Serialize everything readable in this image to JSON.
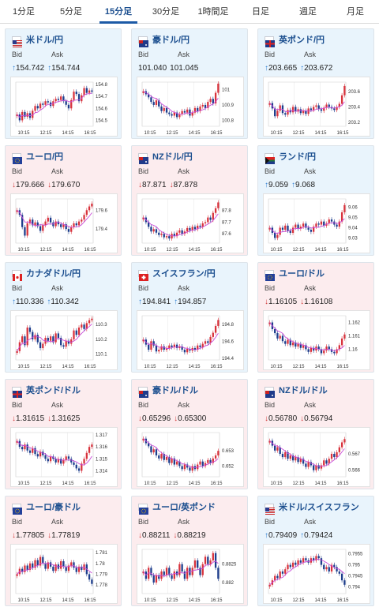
{
  "tabs": [
    {
      "label": "1分足",
      "active": false
    },
    {
      "label": "5分足",
      "active": false
    },
    {
      "label": "15分足",
      "active": true
    },
    {
      "label": "30分足",
      "active": false
    },
    {
      "label": "1時間足",
      "active": false
    },
    {
      "label": "日足",
      "active": false
    },
    {
      "label": "週足",
      "active": false
    },
    {
      "label": "月足",
      "active": false
    }
  ],
  "labels": {
    "bid": "Bid",
    "ask": "Ask"
  },
  "time_ticks": [
    "10:15",
    "12:15",
    "14:15",
    "16:15"
  ],
  "colors": {
    "up": "#2f7fd2",
    "down": "#d23b3b",
    "ma": "#c94bd8",
    "candle_up": "#d8323c",
    "candle_down": "#1d3d8c"
  },
  "pairs": [
    {
      "name": "米ドル/円",
      "flag": "us-flag",
      "trend": "up",
      "bid": "154.742",
      "ask": "154.744",
      "bid_dir": "up",
      "ask_dir": "up",
      "yticks": [
        "154.8",
        "154.7",
        "154.6",
        "154.5"
      ],
      "range": [
        154.45,
        154.82
      ],
      "series": [
        154.55,
        154.5,
        154.57,
        154.53,
        154.56,
        154.52,
        154.58,
        154.62,
        154.6,
        154.64,
        154.63,
        154.66,
        154.65,
        154.62,
        154.66,
        154.68,
        154.67,
        154.7,
        154.66,
        154.63,
        154.6,
        154.67,
        154.74,
        154.72,
        154.66,
        154.71,
        154.77,
        154.73,
        154.75,
        154.74
      ]
    },
    {
      "name": "豪ドル/円",
      "flag": "au-flag",
      "trend": "up",
      "bid": "101.040",
      "ask": "101.045",
      "bid_dir": "none",
      "ask_dir": "none",
      "yticks": [
        "101",
        "100.9",
        "100.8"
      ],
      "range": [
        100.76,
        101.05
      ],
      "series": [
        100.99,
        100.97,
        100.95,
        100.92,
        100.9,
        100.93,
        100.89,
        100.86,
        100.88,
        100.85,
        100.84,
        100.83,
        100.85,
        100.82,
        100.84,
        100.86,
        100.85,
        100.87,
        100.83,
        100.85,
        100.88,
        100.86,
        100.89,
        100.9,
        100.88,
        100.92,
        100.94,
        100.91,
        100.98,
        101.04
      ]
    },
    {
      "name": "英ポンド/円",
      "flag": "gb-flag",
      "trend": "up",
      "bid": "203.665",
      "ask": "203.672",
      "bid_dir": "up",
      "ask_dir": "up",
      "yticks": [
        "203.6",
        "203.4",
        "203.2"
      ],
      "range": [
        203.15,
        203.72
      ],
      "series": [
        203.45,
        203.38,
        203.28,
        203.35,
        203.42,
        203.32,
        203.3,
        203.36,
        203.33,
        203.4,
        203.34,
        203.37,
        203.32,
        203.35,
        203.31,
        203.38,
        203.36,
        203.4,
        203.42,
        203.37,
        203.35,
        203.39,
        203.43,
        203.4,
        203.38,
        203.36,
        203.4,
        203.44,
        203.55,
        203.67
      ]
    },
    {
      "name": "ユーロ/円",
      "flag": "eu-flag",
      "trend": "down",
      "bid": "179.666",
      "ask": "179.670",
      "bid_dir": "down",
      "ask_dir": "down",
      "yticks": [
        "179.6",
        "179.4"
      ],
      "range": [
        179.25,
        179.72
      ],
      "series": [
        179.6,
        179.55,
        179.42,
        179.33,
        179.46,
        179.5,
        179.44,
        179.47,
        179.43,
        179.38,
        179.44,
        179.48,
        179.52,
        179.47,
        179.43,
        179.48,
        179.45,
        179.42,
        179.45,
        179.4,
        179.37,
        179.42,
        179.46,
        179.44,
        179.48,
        179.5,
        179.55,
        179.6,
        179.64,
        179.67
      ]
    },
    {
      "name": "NZドル/円",
      "flag": "nz-flag",
      "trend": "down",
      "bid": "87.871",
      "ask": "87.878",
      "bid_dir": "down",
      "ask_dir": "down",
      "yticks": [
        "87.8",
        "87.7",
        "87.6"
      ],
      "range": [
        87.52,
        87.9
      ],
      "series": [
        87.74,
        87.7,
        87.66,
        87.62,
        87.64,
        87.61,
        87.59,
        87.6,
        87.57,
        87.58,
        87.56,
        87.6,
        87.58,
        87.61,
        87.63,
        87.6,
        87.62,
        87.65,
        87.63,
        87.66,
        87.64,
        87.67,
        87.66,
        87.69,
        87.7,
        87.74,
        87.72,
        87.78,
        87.82,
        87.87
      ]
    },
    {
      "name": "ランド/円",
      "flag": "za-flag",
      "trend": "up",
      "bid": "9.059",
      "ask": "9.068",
      "bid_dir": "up",
      "ask_dir": "up",
      "yticks": [
        "9.06",
        "9.05",
        "9.04",
        "9.03"
      ],
      "range": [
        9.025,
        9.068
      ],
      "series": [
        9.04,
        9.035,
        9.03,
        9.033,
        9.04,
        9.038,
        9.042,
        9.037,
        9.035,
        9.04,
        9.043,
        9.039,
        9.041,
        9.044,
        9.04,
        9.038,
        9.036,
        9.041,
        9.044,
        9.043,
        9.046,
        9.042,
        9.044,
        9.048,
        9.046,
        9.043,
        9.041,
        9.046,
        9.055,
        9.062
      ]
    },
    {
      "name": "カナダドル/円",
      "flag": "ca-flag",
      "trend": "up",
      "bid": "110.336",
      "ask": "110.342",
      "bid_dir": "up",
      "ask_dir": "up",
      "yticks": [
        "110.3",
        "110.2",
        "110.1"
      ],
      "range": [
        110.06,
        110.36
      ],
      "series": [
        110.12,
        110.18,
        110.22,
        110.16,
        110.28,
        110.25,
        110.2,
        110.23,
        110.18,
        110.14,
        110.17,
        110.21,
        110.19,
        110.22,
        110.18,
        110.24,
        110.21,
        110.16,
        110.15,
        110.19,
        110.17,
        110.2,
        110.26,
        110.23,
        110.28,
        110.3,
        110.27,
        110.31,
        110.33,
        110.34
      ]
    },
    {
      "name": "スイスフラン/円",
      "flag": "ch-flag",
      "trend": "up",
      "bid": "194.841",
      "ask": "194.857",
      "bid_dir": "up",
      "ask_dir": "up",
      "yticks": [
        "194.8",
        "194.6",
        "194.4"
      ],
      "range": [
        194.38,
        194.9
      ],
      "series": [
        194.62,
        194.56,
        194.5,
        194.6,
        194.55,
        194.48,
        194.5,
        194.54,
        194.5,
        194.52,
        194.55,
        194.53,
        194.56,
        194.52,
        194.54,
        194.5,
        194.47,
        194.51,
        194.49,
        194.52,
        194.5,
        194.55,
        194.53,
        194.57,
        194.6,
        194.58,
        194.65,
        194.7,
        194.78,
        194.85
      ]
    },
    {
      "name": "ユーロ/ドル",
      "flag": "eu-us-flag",
      "trend": "down",
      "bid": "1.16105",
      "ask": "1.16108",
      "bid_dir": "down",
      "ask_dir": "down",
      "yticks": [
        "1.162",
        "1.161",
        "1.16"
      ],
      "range": [
        1.1592,
        1.1625
      ],
      "series": [
        1.162,
        1.1615,
        1.1612,
        1.1608,
        1.161,
        1.1606,
        1.1604,
        1.1607,
        1.1603,
        1.1605,
        1.1602,
        1.1604,
        1.1601,
        1.1603,
        1.16,
        1.1598,
        1.1601,
        1.1599,
        1.1602,
        1.16,
        1.1597,
        1.1599,
        1.1602,
        1.16,
        1.1598,
        1.1597,
        1.16,
        1.1603,
        1.1608,
        1.1611
      ]
    },
    {
      "name": "英ポンド/ドル",
      "flag": "gb-us-flag",
      "trend": "down",
      "bid": "1.31615",
      "ask": "1.31625",
      "bid_dir": "down",
      "ask_dir": "down",
      "yticks": [
        "1.317",
        "1.316",
        "1.315",
        "1.314"
      ],
      "range": [
        1.3135,
        1.3172
      ],
      "series": [
        1.3165,
        1.316,
        1.3158,
        1.3162,
        1.3157,
        1.3155,
        1.3159,
        1.3154,
        1.3152,
        1.3156,
        1.3153,
        1.315,
        1.3148,
        1.3152,
        1.315,
        1.3147,
        1.315,
        1.3146,
        1.3149,
        1.3152,
        1.315,
        1.3147,
        1.3145,
        1.3142,
        1.314,
        1.3146,
        1.315,
        1.3155,
        1.316,
        1.3162
      ]
    },
    {
      "name": "豪ドル/ドル",
      "flag": "au-us-flag",
      "trend": "down",
      "bid": "0.65296",
      "ask": "0.65300",
      "bid_dir": "down",
      "ask_dir": "down",
      "yticks": [
        "0.653",
        "0.652"
      ],
      "range": [
        0.6513,
        0.6542
      ],
      "series": [
        0.6538,
        0.6535,
        0.6533,
        0.6529,
        0.6531,
        0.6527,
        0.6525,
        0.6528,
        0.6524,
        0.6526,
        0.6522,
        0.6525,
        0.6521,
        0.6523,
        0.652,
        0.6518,
        0.6521,
        0.6519,
        0.6517,
        0.652,
        0.6518,
        0.6521,
        0.6523,
        0.652,
        0.6522,
        0.6524,
        0.6522,
        0.6525,
        0.6527,
        0.653
      ]
    },
    {
      "name": "NZドル/ドル",
      "flag": "nz-us-flag",
      "trend": "down",
      "bid": "0.56780",
      "ask": "0.56794",
      "bid_dir": "down",
      "ask_dir": "down",
      "yticks": [
        "0.567",
        "0.566"
      ],
      "range": [
        0.5656,
        0.5683
      ],
      "series": [
        0.5678,
        0.5675,
        0.5672,
        0.5674,
        0.567,
        0.5668,
        0.5671,
        0.5667,
        0.5669,
        0.5666,
        0.5668,
        0.5665,
        0.5667,
        0.5664,
        0.5662,
        0.5665,
        0.5663,
        0.566,
        0.5663,
        0.5661,
        0.5663,
        0.5666,
        0.5664,
        0.5667,
        0.567,
        0.5668,
        0.5671,
        0.5674,
        0.5677,
        0.5679
      ]
    },
    {
      "name": "ユーロ/豪ドル",
      "flag": "eu-au-flag",
      "trend": "down",
      "bid": "1.77805",
      "ask": "1.77819",
      "bid_dir": "down",
      "ask_dir": "down",
      "yticks": [
        "1.781",
        "1.78",
        "1.779",
        "1.778"
      ],
      "range": [
        1.7772,
        1.7813
      ],
      "series": [
        1.779,
        1.7795,
        1.7792,
        1.7798,
        1.7794,
        1.78,
        1.7796,
        1.7803,
        1.7798,
        1.7806,
        1.78,
        1.7795,
        1.7801,
        1.7797,
        1.7793,
        1.7799,
        1.7795,
        1.7802,
        1.7797,
        1.7793,
        1.7798,
        1.7801,
        1.7796,
        1.7792,
        1.7797,
        1.7794,
        1.7799,
        1.779,
        1.7785,
        1.7781
      ]
    },
    {
      "name": "ユーロ/英ポンド",
      "flag": "eu-gb-flag",
      "trend": "down",
      "bid": "0.88211",
      "ask": "0.88219",
      "bid_dir": "down",
      "ask_dir": "down",
      "yticks": [
        "0.8825",
        "0.882"
      ],
      "range": [
        0.8817,
        0.8829
      ],
      "series": [
        0.8823,
        0.8821,
        0.8824,
        0.8822,
        0.882,
        0.8822,
        0.8821,
        0.8823,
        0.8822,
        0.8824,
        0.8822,
        0.8821,
        0.8823,
        0.8822,
        0.8825,
        0.8823,
        0.8821,
        0.8824,
        0.8822,
        0.8824,
        0.8826,
        0.8824,
        0.8822,
        0.8825,
        0.8827,
        0.8825,
        0.8826,
        0.8828,
        0.8824,
        0.8821
      ]
    },
    {
      "name": "米ドル/スイスフラン",
      "flag": "us-ch-flag",
      "trend": "up",
      "bid": "0.79409",
      "ask": "0.79424",
      "bid_dir": "up",
      "ask_dir": "up",
      "yticks": [
        "0.7955",
        "0.795",
        "0.7945",
        "0.794"
      ],
      "range": [
        0.7937,
        0.7957
      ],
      "series": [
        0.7941,
        0.7943,
        0.7945,
        0.7944,
        0.7947,
        0.7946,
        0.7948,
        0.795,
        0.7949,
        0.7951,
        0.795,
        0.7952,
        0.7951,
        0.7953,
        0.7952,
        0.7951,
        0.7953,
        0.7952,
        0.7954,
        0.7953,
        0.795,
        0.7948,
        0.7949,
        0.7947,
        0.795,
        0.7949,
        0.7947,
        0.7946,
        0.7943,
        0.7941
      ]
    }
  ]
}
